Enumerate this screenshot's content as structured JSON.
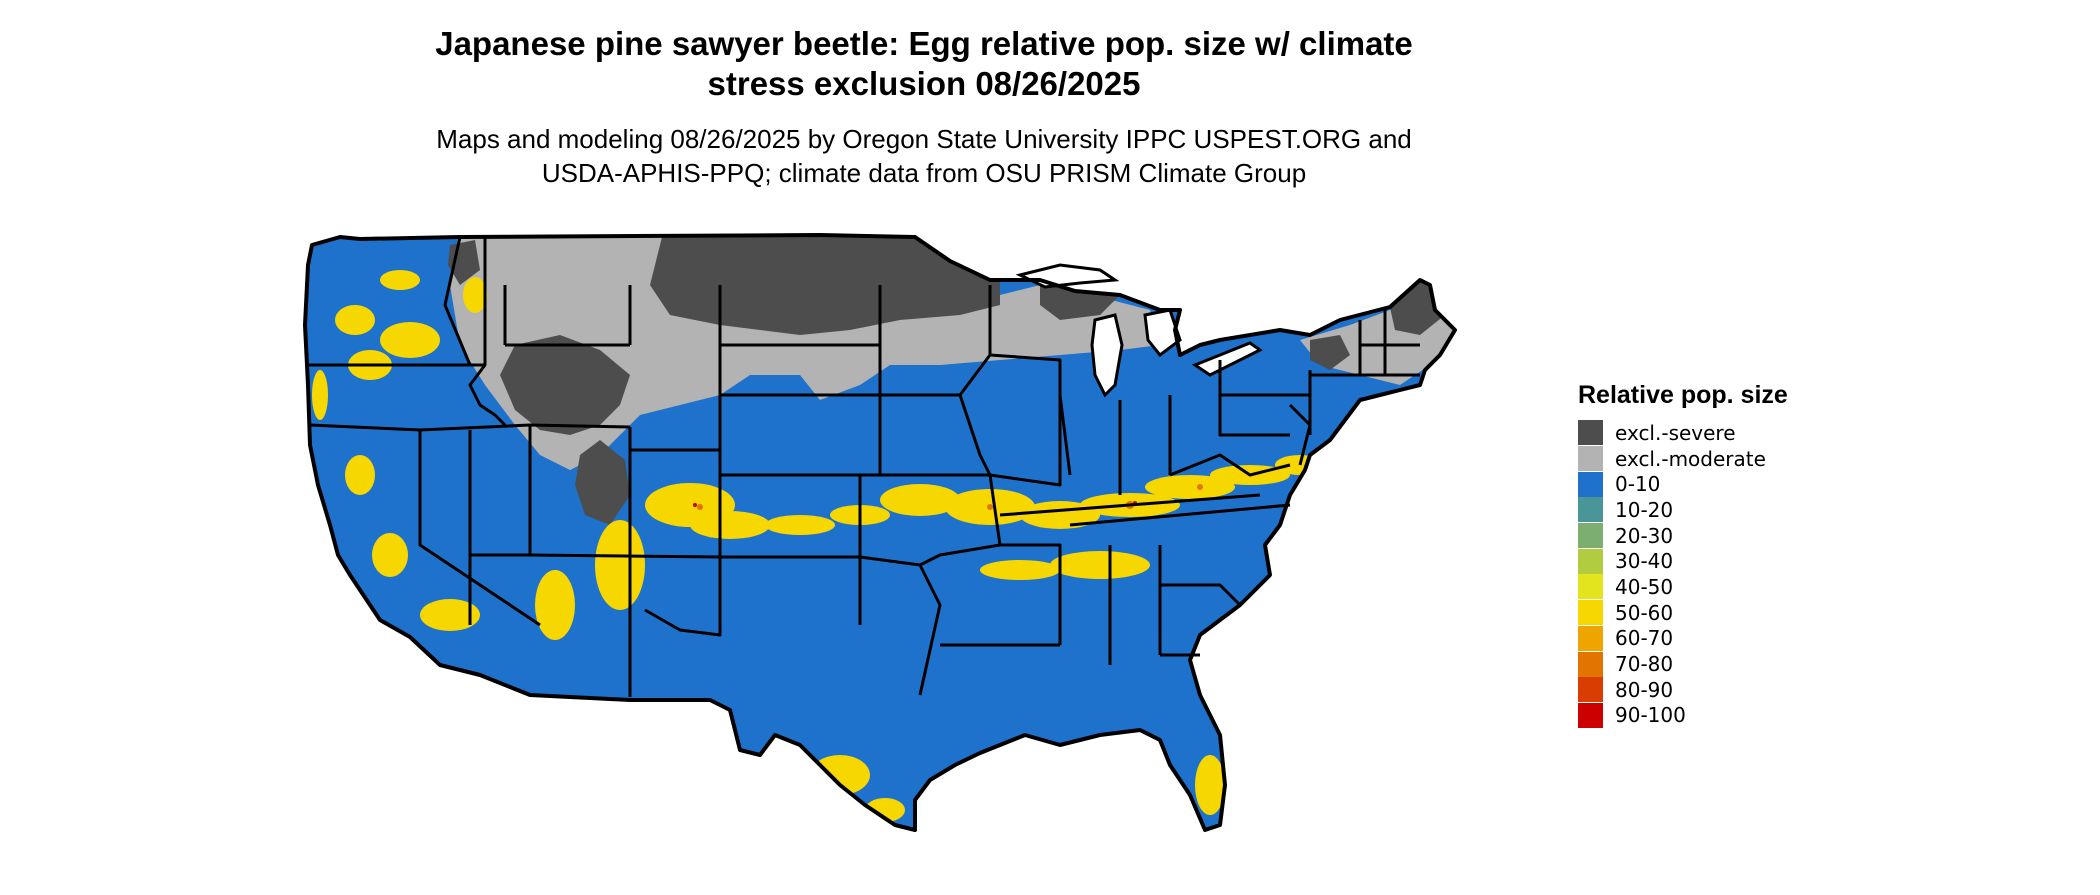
{
  "title": "Japanese pine sawyer beetle: Egg relative pop. size w/ climate\nstress exclusion 08/26/2025",
  "subtitle": "Maps and modeling 08/26/2025 by Oregon State University IPPC USPEST.ORG and\nUSDA-APHIS-PPQ; climate data from OSU PRISM Climate Group",
  "legend": {
    "title": "Relative pop. size",
    "items": [
      {
        "label": "excl.-severe",
        "color": "#4d4d4d"
      },
      {
        "label": "excl.-moderate",
        "color": "#b3b3b3"
      },
      {
        "label": "0-10",
        "color": "#1f72cc"
      },
      {
        "label": "10-20",
        "color": "#4a9598"
      },
      {
        "label": "20-30",
        "color": "#7cae70"
      },
      {
        "label": "30-40",
        "color": "#b2cc40"
      },
      {
        "label": "40-50",
        "color": "#e3e31e"
      },
      {
        "label": "50-60",
        "color": "#f7d700"
      },
      {
        "label": "60-70",
        "color": "#efa500"
      },
      {
        "label": "70-80",
        "color": "#e27400"
      },
      {
        "label": "80-90",
        "color": "#d93d00"
      },
      {
        "label": "90-100",
        "color": "#cc0000"
      }
    ]
  },
  "map": {
    "region": "contiguous-united-states",
    "border_color": "#000000",
    "hotspot_color": "#f7d700"
  }
}
